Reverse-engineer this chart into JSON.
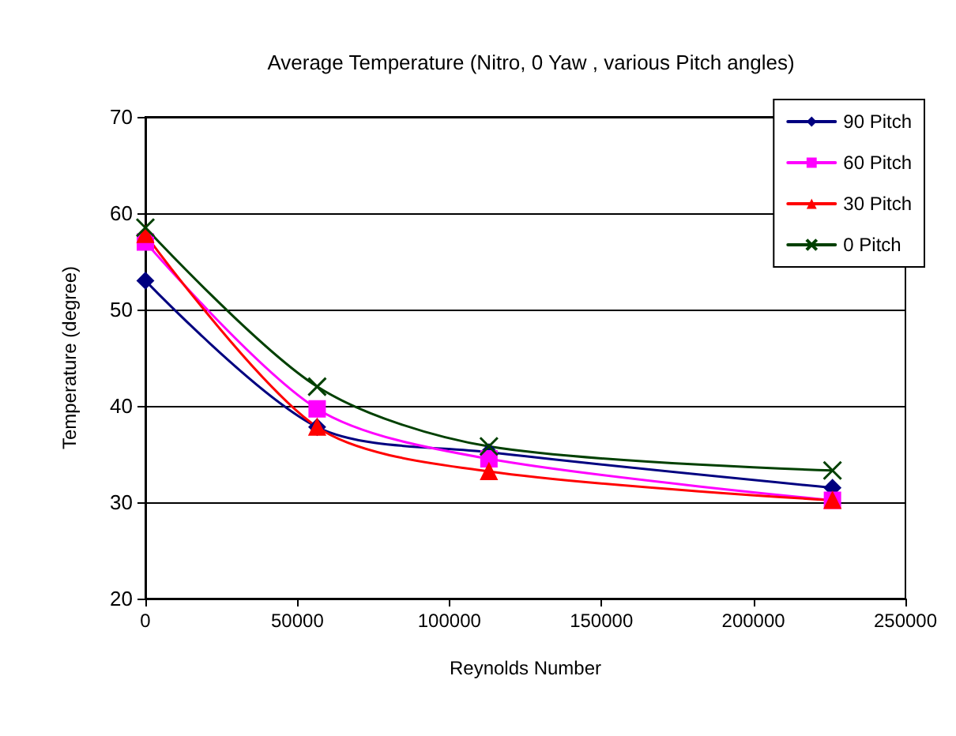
{
  "chart_data": {
    "type": "line",
    "title": "Average Temperature (Nitro, 0 Yaw , various Pitch angles)",
    "xlabel": "Reynolds Number",
    "ylabel": "Temperature (degree)",
    "x": [
      0,
      56500,
      113000,
      226000
    ],
    "series": [
      {
        "name": "90 Pitch",
        "color": "#000080",
        "marker": "diamond",
        "values": [
          53,
          37.8,
          35.2,
          31.5
        ]
      },
      {
        "name": "60 Pitch",
        "color": "#ff00ff",
        "marker": "square",
        "values": [
          57,
          39.7,
          34.5,
          30.2
        ]
      },
      {
        "name": "30 Pitch",
        "color": "#ff0000",
        "marker": "triangle",
        "values": [
          57.8,
          37.8,
          33.2,
          30.2
        ]
      },
      {
        "name": "0 Pitch",
        "color": "#004000",
        "marker": "cross",
        "values": [
          58.5,
          42,
          35.8,
          33.3
        ]
      }
    ],
    "xlim": [
      0,
      250000
    ],
    "xticks": [
      0,
      50000,
      100000,
      150000,
      200000,
      250000
    ],
    "ylim": [
      20,
      70
    ],
    "yticks": [
      20,
      30,
      40,
      50,
      60,
      70
    ],
    "grid": "y",
    "legend": "top right",
    "line_style": "solid"
  }
}
